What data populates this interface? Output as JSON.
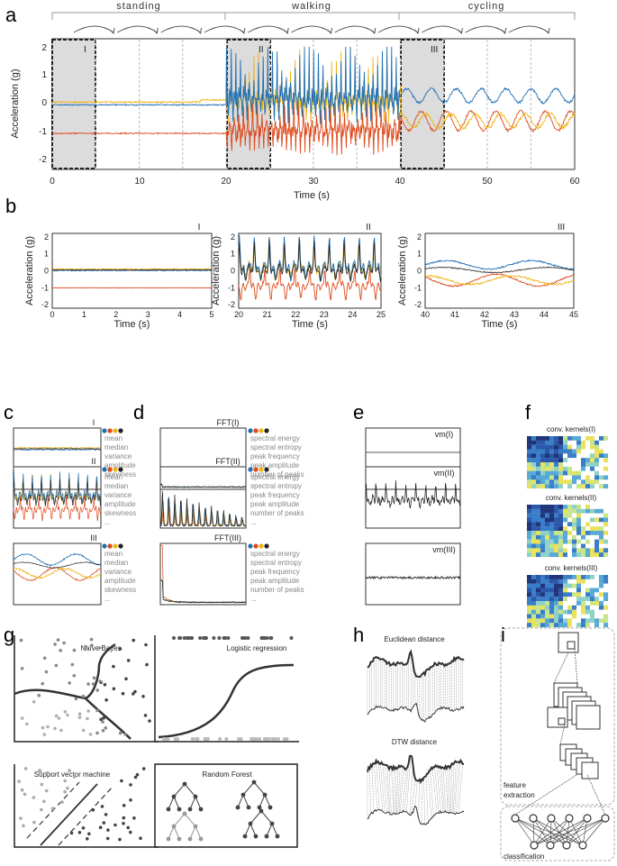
{
  "panels": {
    "a": "a",
    "b": "b",
    "c": "c",
    "d": "d",
    "e": "e",
    "f": "f",
    "g": "g",
    "h": "h",
    "i": "i"
  },
  "colors": {
    "blue": "#1f6fb4",
    "red": "#dd4a1c",
    "yellow": "#f0b418",
    "black": "#222222"
  },
  "panel_a": {
    "activities": [
      "standing",
      "walking",
      "cycling"
    ],
    "windows": [
      "I",
      "II",
      "III"
    ],
    "ylabel": "Acceleration (g)",
    "xlabel": "Time (s)",
    "yticks": [
      "2",
      "1",
      "0",
      "-1",
      "-2"
    ],
    "xticks": [
      "0",
      "10",
      "20",
      "30",
      "40",
      "50",
      "60"
    ]
  },
  "panel_b": {
    "ylabel": "Acceleration (g)",
    "xlabel": "Time (s)",
    "yticks": [
      "2",
      "1",
      "0",
      "-1",
      "-2"
    ],
    "plots": [
      {
        "title": "I",
        "xticks": [
          "0",
          "1",
          "2",
          "3",
          "4",
          "5"
        ]
      },
      {
        "title": "II",
        "xticks": [
          "20",
          "21",
          "22",
          "23",
          "24",
          "25"
        ]
      },
      {
        "title": "III",
        "xticks": [
          "40",
          "41",
          "42",
          "43",
          "44",
          "45"
        ]
      }
    ]
  },
  "panel_c": {
    "titles": [
      "I",
      "II",
      "III"
    ],
    "features": [
      "mean",
      "median",
      "variance",
      "amplitude",
      "skewness",
      "..."
    ]
  },
  "panel_d": {
    "titles": [
      "FFT(I)",
      "FFT(II)",
      "FFT(III)"
    ],
    "features": [
      "spectral energy",
      "spectral entropy",
      "peak frequency",
      "peak amplitude",
      "number of peaks",
      "..."
    ]
  },
  "panel_e": {
    "titles": [
      "vm(I)",
      "vm(II)",
      "vm(III)"
    ]
  },
  "panel_f": {
    "titles": [
      "conv. kernels(I)",
      "conv. kernels(II)",
      "conv. kernels(III)"
    ]
  },
  "panel_g": {
    "titles": [
      "Naïve Bayes",
      "Logistic regression",
      "Support vector machine",
      "Random Forest"
    ]
  },
  "panel_h": {
    "titles": [
      "Euclidean distance",
      "DTW distance"
    ]
  },
  "panel_i": {
    "labels": [
      "feature",
      "extraction",
      "classification"
    ]
  }
}
